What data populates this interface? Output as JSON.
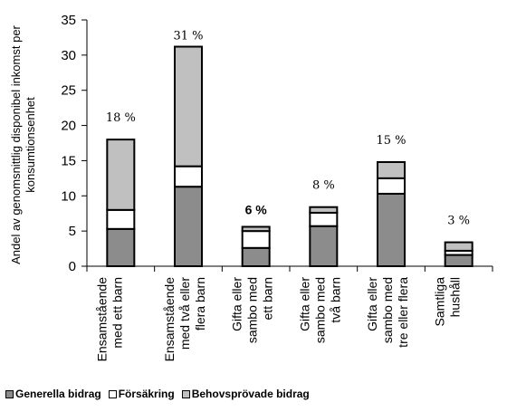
{
  "chart_data": {
    "type": "bar",
    "stacked": true,
    "ylabel": "Andel av genomsnittlig disponibel inkomst per konsumtionsenhet",
    "ylim": [
      0,
      35
    ],
    "yticks": [
      0,
      5,
      10,
      15,
      20,
      25,
      30,
      35
    ],
    "grid": false,
    "legend_position": "bottom-left",
    "categories": [
      [
        "Ensamstående",
        "med ett barn"
      ],
      [
        "Ensamstående",
        "med två eller",
        "flera barn"
      ],
      [
        "Gifta eller",
        "sambo med",
        "ett barn"
      ],
      [
        "Gifta eller",
        "sambo med",
        "två barn"
      ],
      [
        "Gifta eller",
        "sambo med",
        "tre eller flera"
      ],
      [
        "Samtliga",
        "hushåll"
      ]
    ],
    "series": [
      {
        "name": "Generella bidrag",
        "color": "#8c8c8c",
        "values": [
          5.3,
          11.3,
          2.6,
          5.7,
          10.3,
          1.6
        ]
      },
      {
        "name": "Försäkring",
        "color": "#ffffff",
        "values": [
          2.7,
          2.9,
          2.4,
          1.9,
          2.2,
          0.6
        ]
      },
      {
        "name": "Behovsprövade bidrag",
        "color": "#c0c0c0",
        "values": [
          10.0,
          17.0,
          0.6,
          0.8,
          2.3,
          1.2
        ]
      }
    ],
    "total_labels": [
      "18 %",
      "31 %",
      "6 %",
      "8 %",
      "15 %",
      "3  %"
    ],
    "total_label_bold": [
      false,
      false,
      true,
      false,
      false,
      false
    ]
  }
}
